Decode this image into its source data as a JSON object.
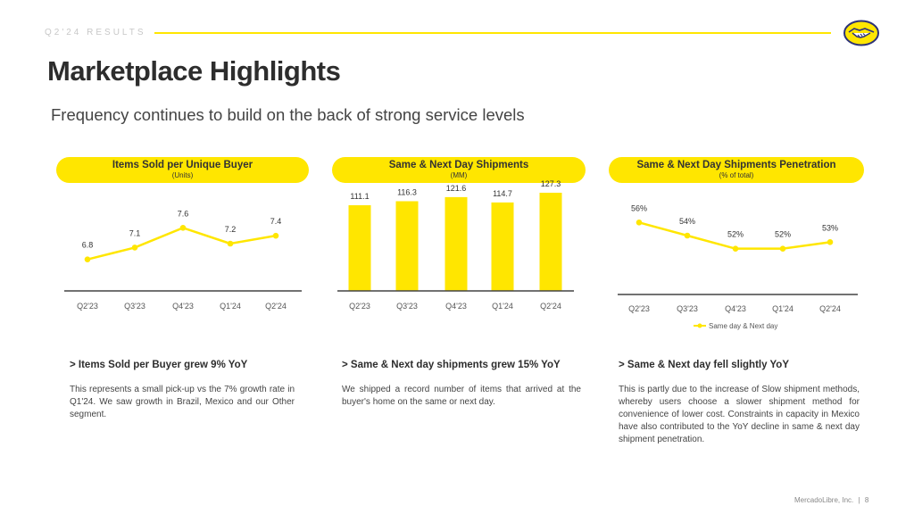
{
  "header": {
    "section_label": "Q2'24 RESULTS",
    "title": "Marketplace Highlights",
    "subtitle": "Frequency continues to build on the back of strong service levels"
  },
  "colors": {
    "accent": "#ffe600",
    "text": "#333333",
    "axis": "#444444"
  },
  "icons": {
    "logo": "handshake-logo-icon"
  },
  "panels": [
    {
      "title": "Items Sold per Unique Buyer",
      "unit": "(Units)",
      "heading": "> Items Sold per Buyer grew 9% YoY",
      "body": "This represents a small pick-up vs the 7% growth rate in Q1'24. We saw growth in Brazil, Mexico and our Other segment."
    },
    {
      "title": "Same & Next Day Shipments",
      "unit": "(MM)",
      "heading": "> Same & Next day shipments grew 15% YoY",
      "body": "We shipped a record number of items that arrived at the buyer's home on the same or next day."
    },
    {
      "title": "Same & Next Day Shipments Penetration",
      "unit": "(% of total)",
      "heading": "> Same & Next day fell slightly YoY",
      "body": "This is partly due to the increase of Slow shipment methods, whereby users choose a slower shipment method for convenience of lower cost. Constraints in capacity in Mexico have also contributed to the YoY decline in same & next day shipment penetration."
    }
  ],
  "chart_data": [
    {
      "type": "line",
      "title": "Items Sold per Unique Buyer",
      "categories": [
        "Q2'23",
        "Q3'23",
        "Q4'23",
        "Q1'24",
        "Q2'24"
      ],
      "values": [
        6.8,
        7.1,
        7.6,
        7.2,
        7.4
      ],
      "labels": [
        "6.8",
        "7.1",
        "7.6",
        "7.2",
        "7.4"
      ],
      "ylim": [
        6.0,
        8.4
      ]
    },
    {
      "type": "bar",
      "title": "Same & Next Day Shipments",
      "categories": [
        "Q2'23",
        "Q3'23",
        "Q4'23",
        "Q1'24",
        "Q2'24"
      ],
      "values": [
        111.1,
        116.3,
        121.6,
        114.7,
        127.3
      ],
      "labels": [
        "111.1",
        "116.3",
        "121.6",
        "114.7",
        "127.3"
      ],
      "ylim": [
        0,
        140
      ]
    },
    {
      "type": "line",
      "title": "Same & Next Day Shipments Penetration",
      "categories": [
        "Q2'23",
        "Q3'23",
        "Q4'23",
        "Q1'24",
        "Q2'24"
      ],
      "values": [
        56,
        54,
        52,
        52,
        53
      ],
      "labels": [
        "56%",
        "54%",
        "52%",
        "52%",
        "53%"
      ],
      "ylim": [
        45,
        60
      ],
      "series": [
        {
          "name": "Same day & Next day",
          "values": [
            56,
            54,
            52,
            52,
            53
          ]
        }
      ],
      "legend": "bottom"
    }
  ],
  "footer": {
    "company": "MercadoLibre, Inc.",
    "separator": "|",
    "page": "8"
  }
}
